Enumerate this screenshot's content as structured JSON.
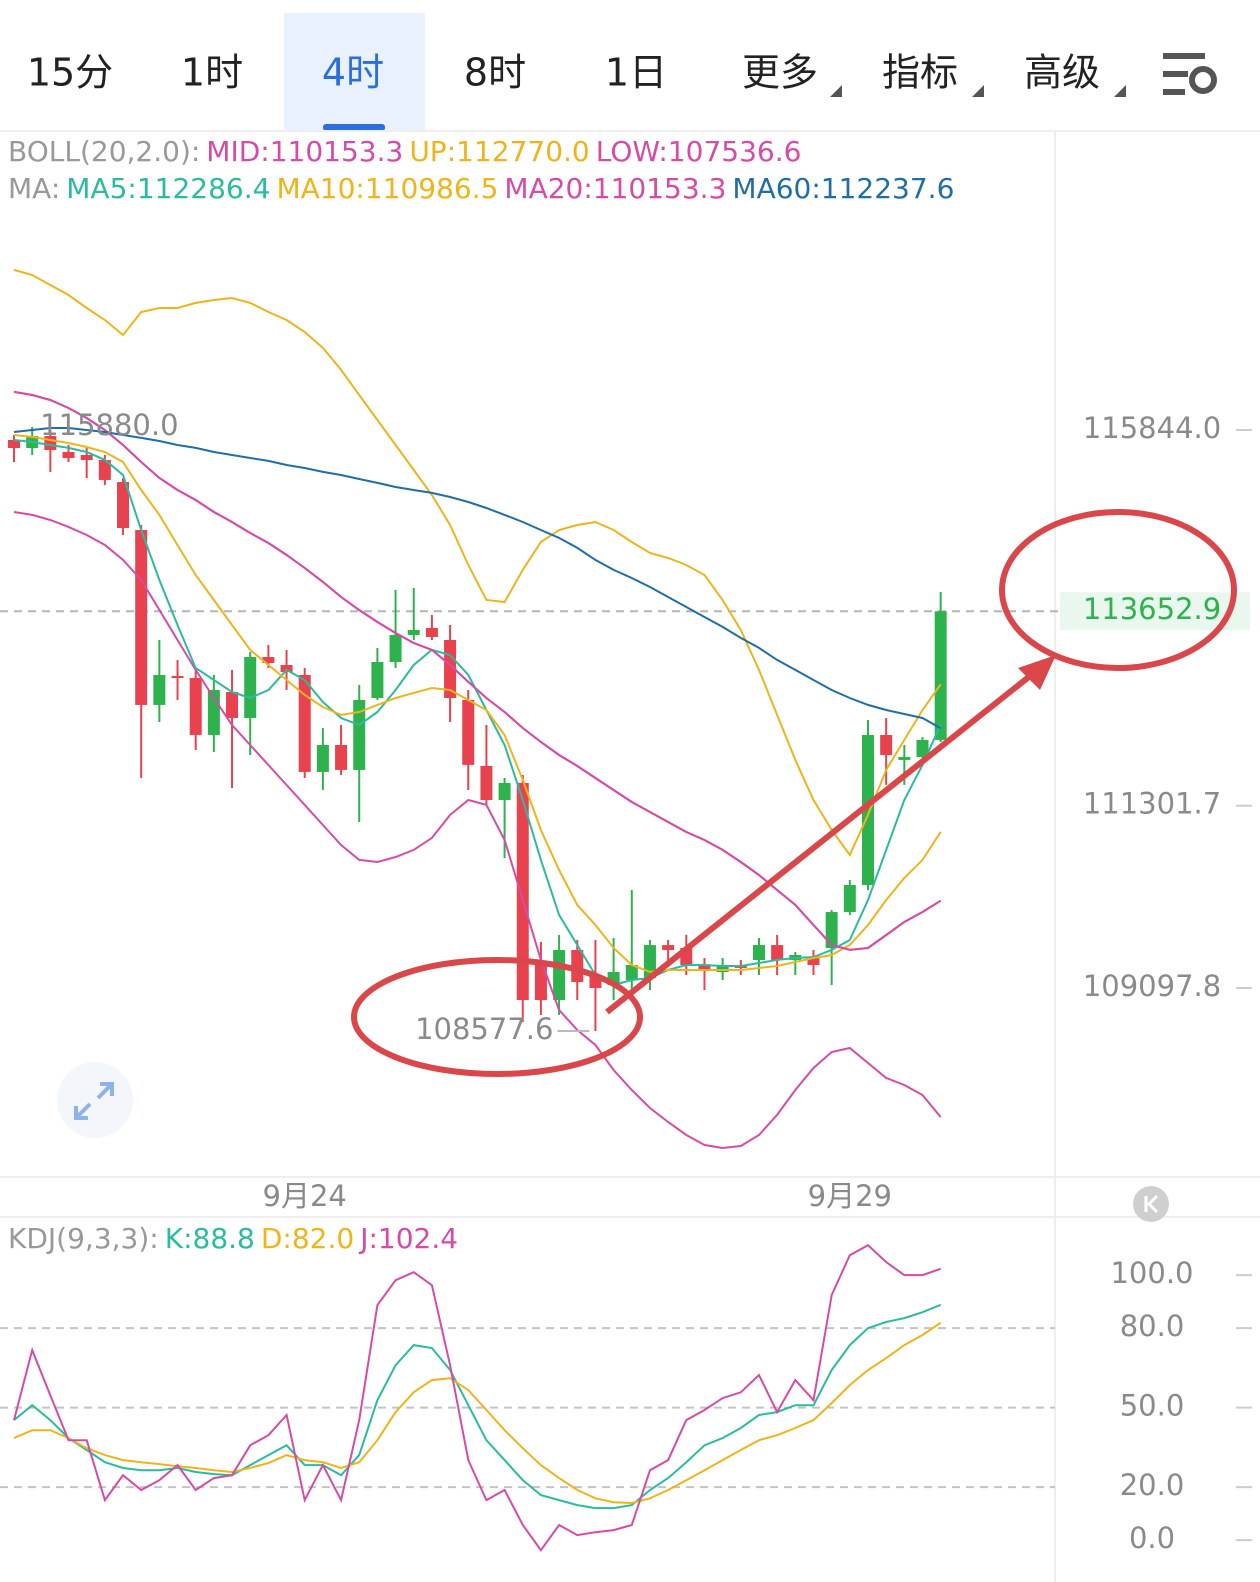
{
  "tabs": [
    "15分",
    "1时",
    "4时",
    "8时",
    "1日",
    "更多",
    "指标",
    "高级"
  ],
  "chart_data": [
    {
      "type": "candlestick",
      "categories": [
        null,
        null,
        null,
        null,
        null,
        null,
        null,
        null,
        null,
        null,
        null,
        null,
        null,
        null,
        null,
        null,
        "9月24",
        null,
        null,
        null,
        null,
        null,
        null,
        null,
        null,
        null,
        null,
        null,
        null,
        null,
        null,
        null,
        null,
        null,
        null,
        null,
        null,
        null,
        null,
        null,
        null,
        null,
        null,
        null,
        null,
        null,
        "9月29",
        null,
        null,
        null,
        null,
        null
      ],
      "open": [
        115723,
        115626,
        115771,
        115578,
        115542,
        115481,
        115215,
        114635,
        112520,
        112870,
        112846,
        112157,
        112677,
        112362,
        113099,
        113003,
        112882,
        111710,
        112036,
        111734,
        112604,
        113039,
        113366,
        113450,
        113305,
        112580,
        111783,
        111371,
        111577,
        109412,
        108952,
        109557,
        109255,
        109134,
        109194,
        109219,
        109617,
        109581,
        109376,
        109291,
        109376,
        109436,
        109617,
        109436,
        109460,
        109581,
        110016,
        110343,
        112157,
        111855,
        111891,
        112097
      ],
      "high": [
        115784,
        115880,
        115844,
        115663,
        115626,
        115542,
        115263,
        114695,
        113305,
        113063,
        112943,
        112882,
        112943,
        113160,
        113245,
        113184,
        112967,
        112241,
        112278,
        112761,
        113208,
        113910,
        113934,
        113607,
        113487,
        112701,
        112278,
        111637,
        111673,
        109654,
        109739,
        109678,
        109678,
        109702,
        110283,
        109678,
        109678,
        109739,
        109460,
        109460,
        109436,
        109702,
        109739,
        109533,
        109557,
        110041,
        110404,
        112338,
        112362,
        112036,
        112132,
        113885
      ],
      "low": [
        115457,
        115542,
        115337,
        115457,
        115263,
        115179,
        114575,
        111637,
        112314,
        112580,
        111975,
        111951,
        111516,
        111915,
        112967,
        112701,
        111637,
        111492,
        111673,
        111105,
        112580,
        112967,
        113305,
        113305,
        112314,
        111492,
        111311,
        110669,
        108687,
        108771,
        108771,
        108952,
        108577.6,
        108952,
        109074,
        109074,
        109412,
        109255,
        109074,
        109194,
        109255,
        109255,
        109255,
        109255,
        109255,
        109134,
        109980,
        110283,
        111553,
        111553,
        111794,
        112072
      ],
      "close": [
        115626,
        115771,
        115602,
        115505,
        115481,
        115240,
        114659,
        112520,
        112882,
        112846,
        112157,
        112701,
        112362,
        113099,
        113027,
        112918,
        111710,
        112036,
        111734,
        112580,
        113039,
        113366,
        113426,
        113341,
        112604,
        111795,
        111371,
        111577,
        108952,
        108952,
        109557,
        109170,
        109098,
        109291,
        109376,
        109617,
        109557,
        109376,
        109315,
        109376,
        109340,
        109617,
        109436,
        109497,
        109376,
        110016,
        110343,
        112157,
        111915,
        111891,
        112097,
        113652.9
      ],
      "up_color": "#2eb24d",
      "down_color": "#e8424f",
      "ylim": [
        106837,
        119350
      ],
      "yticks": [
        {
          "value": 115844,
          "label": "115844.0"
        },
        111301.7,
        109097.8
      ],
      "max_label": {
        "value": 115880,
        "label": "115880.0"
      },
      "min_label": 108577.6,
      "last_price": 113652.9,
      "boll": {
        "title": "BOLL(20,2.0):",
        "series": [
          {
            "name": "MID:110153.3",
            "color": "#d64ba6",
            "values": [
              116304,
              116267,
              116207,
              116110,
              115989,
              115844,
              115663,
              115457,
              115264,
              115119,
              114998,
              114853,
              114732,
              114599,
              114478,
              114333,
              114176,
              114007,
              113825,
              113668,
              113523,
              113390,
              113269,
              113185,
              113003,
              112798,
              112604,
              112435,
              112241,
              112072,
              111915,
              111782,
              111637,
              111492,
              111347,
              111226,
              111105,
              110984,
              110887,
              110767,
              110621,
              110464,
              110283,
              110102,
              109860,
              109618,
              109558,
              109582,
              109739,
              109896,
              110017,
              110153.3
            ]
          },
          {
            "name": "UP:112770.0",
            "color": "#efb41b",
            "values": [
              117779,
              117718,
              117597,
              117476,
              117319,
              117174,
              116993,
              117271,
              117319,
              117319,
              117380,
              117416,
              117440,
              117380,
              117271,
              117174,
              117029,
              116836,
              116570,
              116267,
              115965,
              115663,
              115361,
              115058,
              114696,
              114212,
              113789,
              113765,
              114152,
              114490,
              114635,
              114696,
              114732,
              114635,
              114490,
              114357,
              114297,
              114212,
              114091,
              113789,
              113426,
              112943,
              112399,
              111855,
              111371,
              111008,
              110706,
              111190,
              111734,
              112096,
              112459,
              112770
            ]
          },
          {
            "name": "LOW:107536.6",
            "color": "#d64ba6",
            "values": [
              114853,
              114817,
              114756,
              114672,
              114575,
              114454,
              114273,
              114031,
              113668,
              113305,
              112943,
              112604,
              112278,
              112036,
              111794,
              111552,
              111311,
              111069,
              110827,
              110646,
              110621,
              110682,
              110767,
              110912,
              111190,
              111371,
              111311,
              110887,
              110162,
              109437,
              108832,
              108590,
              108409,
              108107,
              107865,
              107647,
              107478,
              107321,
              107200,
              107164,
              107188,
              107321,
              107563,
              107865,
              108131,
              108324,
              108373,
              108191,
              108010,
              107925,
              107804,
              107536.6
            ]
          }
        ]
      },
      "ma": {
        "title": "MA:",
        "series": [
          {
            "name": "MA5:112286.4",
            "color": "#2bbba0",
            "values": [
              115723,
              115699,
              115663,
              115627,
              115578,
              115482,
              115300,
              114635,
              114031,
              113487,
              112967,
              112822,
              112677,
              112604,
              112701,
              112943,
              112822,
              112556,
              112362,
              112278,
              112435,
              112701,
              113003,
              113185,
              113124,
              112882,
              112459,
              112036,
              111371,
              110646,
              109981,
              109618,
              109255,
              109134,
              109195,
              109219,
              109316,
              109376,
              109376,
              109364,
              109364,
              109400,
              109437,
              109461,
              109473,
              109558,
              109678,
              110162,
              110767,
              111371,
              111794,
              112286.4
            ]
          },
          {
            "name": "MA10:110986.5",
            "color": "#efb41b",
            "values": [
              115784,
              115760,
              115723,
              115687,
              115639,
              115578,
              115457,
              115119,
              114817,
              114454,
              114091,
              113789,
              113487,
              113185,
              113003,
              112822,
              112640,
              112495,
              112399,
              112435,
              112520,
              112604,
              112665,
              112725,
              112701,
              112580,
              112459,
              112157,
              111613,
              111008,
              110525,
              110102,
              109860,
              109582,
              109376,
              109292,
              109316,
              109316,
              109316,
              109316,
              109316,
              109340,
              109364,
              109412,
              109461,
              109497,
              109618,
              109860,
              110162,
              110428,
              110646,
              110986.5
            ]
          },
          {
            "name": "MA20:110153.3",
            "color": "#d64ba6",
            "values": [
              116304,
              116267,
              116207,
              116110,
              115989,
              115844,
              115663,
              115457,
              115264,
              115119,
              114998,
              114853,
              114732,
              114599,
              114478,
              114333,
              114176,
              114007,
              113825,
              113668,
              113523,
              113390,
              113269,
              113185,
              113003,
              112798,
              112604,
              112435,
              112241,
              112072,
              111915,
              111782,
              111637,
              111492,
              111347,
              111226,
              111105,
              110984,
              110887,
              110767,
              110621,
              110464,
              110283,
              110102,
              109860,
              109618,
              109558,
              109582,
              109739,
              109896,
              110017,
              110153.3
            ]
          },
          {
            "name": "MA60:112237.6",
            "color": "#1f6ea8",
            "values": [
              115820,
              115844,
              115868,
              115868,
              115844,
              115820,
              115784,
              115748,
              115711,
              115663,
              115627,
              115578,
              115542,
              115506,
              115470,
              115421,
              115385,
              115337,
              115300,
              115252,
              115204,
              115155,
              115119,
              115083,
              115034,
              114974,
              114901,
              114817,
              114732,
              114635,
              114539,
              114418,
              114273,
              114152,
              114055,
              113946,
              113825,
              113704,
              113583,
              113463,
              113330,
              113209,
              113064,
              112943,
              112822,
              112701,
              112604,
              112520,
              112459,
              112411,
              112362,
              112237.6
            ]
          }
        ]
      }
    },
    {
      "type": "line",
      "title": "KDJ(9,3,3):",
      "ylim": [
        -15.8,
        120.8
      ],
      "yticks": [
        {
          "value": 100,
          "label": "100.0"
        },
        {
          "value": 80,
          "label": "80.0"
        },
        {
          "value": 50,
          "label": "50.0"
        },
        {
          "value": 20,
          "label": "20.0"
        },
        {
          "value": 0,
          "label": "0.0"
        }
      ],
      "series": [
        {
          "name": "K:88.8",
          "color": "#2bbba0",
          "values": [
            45.3,
            50.9,
            45.3,
            38.5,
            34.0,
            29.4,
            27.2,
            26.4,
            26.4,
            27.2,
            25.7,
            24.9,
            24.5,
            28.3,
            32.1,
            35.8,
            28.3,
            28.3,
            24.5,
            32.1,
            52.8,
            66.0,
            73.6,
            72.5,
            64.2,
            50.9,
            37.7,
            30.2,
            22.6,
            17.0,
            15.1,
            13.2,
            12.1,
            12.1,
            13.2,
            18.9,
            23.4,
            29.4,
            35.8,
            38.5,
            42.3,
            47.2,
            48.3,
            50.9,
            50.9,
            64.2,
            73.6,
            80.0,
            82.3,
            83.8,
            86.0,
            88.8
          ]
        },
        {
          "name": "D:82.0",
          "color": "#efb41b",
          "values": [
            38.5,
            41.5,
            41.5,
            38.5,
            34.7,
            32.1,
            30.2,
            29.4,
            28.7,
            27.9,
            27.2,
            26.4,
            25.7,
            27.2,
            29.1,
            32.1,
            30.2,
            29.4,
            27.2,
            29.4,
            37.7,
            48.3,
            55.8,
            60.4,
            61.1,
            56.6,
            49.1,
            41.5,
            34.7,
            28.3,
            23.4,
            18.9,
            15.8,
            14.3,
            14.0,
            15.8,
            18.9,
            22.6,
            26.4,
            30.2,
            34.0,
            37.7,
            39.6,
            42.3,
            45.3,
            51.7,
            58.5,
            64.2,
            68.7,
            73.6,
            77.4,
            82.0
          ]
        },
        {
          "name": "J:102.4",
          "color": "#d64ba6",
          "values": [
            45.3,
            71.7,
            54.7,
            37.7,
            37.7,
            15.1,
            24.5,
            18.9,
            22.6,
            28.3,
            18.9,
            23.4,
            24.5,
            35.8,
            39.6,
            47.2,
            15.1,
            28.3,
            15.1,
            45.3,
            88.7,
            98.1,
            101.1,
            96.2,
            66.0,
            30.2,
            15.1,
            18.9,
            5.7,
            -3.8,
            5.7,
            1.9,
            3.0,
            3.8,
            5.7,
            26.4,
            30.2,
            45.3,
            49.1,
            53.6,
            55.8,
            62.3,
            48.3,
            60.4,
            52.8,
            92.5,
            107.5,
            111.3,
            104.9,
            100.0,
            100.0,
            102.4
          ]
        }
      ]
    }
  ]
}
